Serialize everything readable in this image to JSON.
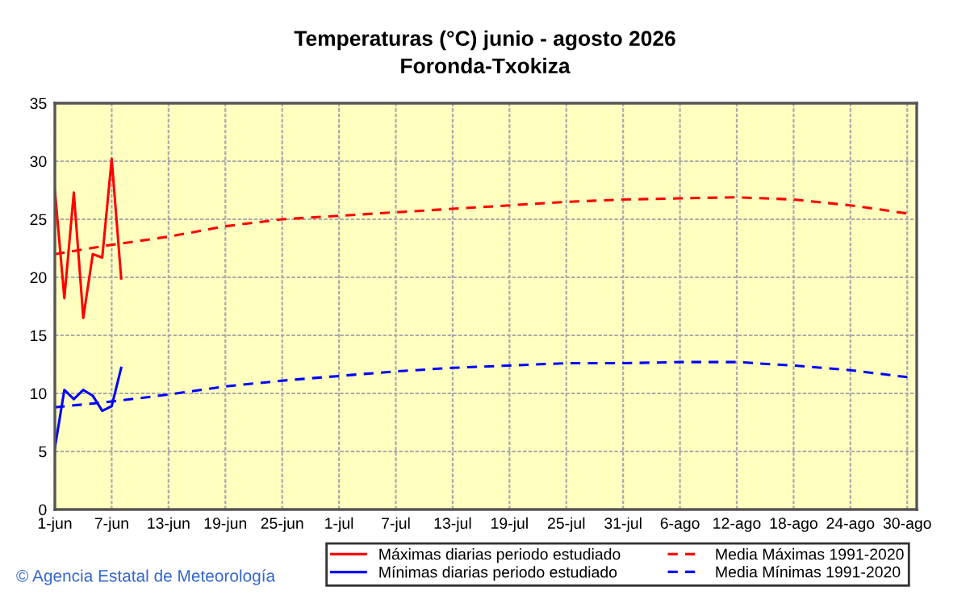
{
  "chart_data": {
    "type": "line",
    "title": "Temperaturas (°C) junio - agosto 2026",
    "subtitle": "Foronda-Txokiza",
    "annotations": [
      "© Agencia Estatal de Meteorología"
    ],
    "xlim": [
      "2026-06-01",
      "2026-08-31"
    ],
    "xticks": [
      {
        "value": "2026-06-01",
        "label": "1-jun"
      },
      {
        "value": "2026-06-07",
        "label": "7-jun"
      },
      {
        "value": "2026-06-13",
        "label": "13-jun"
      },
      {
        "value": "2026-06-19",
        "label": "19-jun"
      },
      {
        "value": "2026-06-25",
        "label": "25-jun"
      },
      {
        "value": "2026-07-01",
        "label": "1-jul"
      },
      {
        "value": "2026-07-07",
        "label": "7-jul"
      },
      {
        "value": "2026-07-13",
        "label": "13-jul"
      },
      {
        "value": "2026-07-19",
        "label": "19-jul"
      },
      {
        "value": "2026-07-25",
        "label": "25-jul"
      },
      {
        "value": "2026-07-31",
        "label": "31-jul"
      },
      {
        "value": "2026-08-06",
        "label": "6-ago"
      },
      {
        "value": "2026-08-12",
        "label": "12-ago"
      },
      {
        "value": "2026-08-18",
        "label": "18-ago"
      },
      {
        "value": "2026-08-24",
        "label": "24-ago"
      },
      {
        "value": "2026-08-30",
        "label": "30-ago"
      }
    ],
    "ylim": [
      0,
      35
    ],
    "yticks": [
      0,
      5,
      10,
      15,
      20,
      25,
      30,
      35
    ],
    "grid": true,
    "legend": "bottom right",
    "marker": "none",
    "series": [
      {
        "name": "Máximas diarias periodo estudiado",
        "color": "#ff0000",
        "line_style": "solid",
        "x": [
          "2026-06-01",
          "2026-06-02",
          "2026-06-03",
          "2026-06-04",
          "2026-06-05",
          "2026-06-06",
          "2026-06-07",
          "2026-06-08"
        ],
        "values": [
          27.5,
          18.2,
          27.3,
          16.5,
          22.0,
          21.7,
          30.2,
          19.9
        ]
      },
      {
        "name": "Mínimas diarias periodo estudiado",
        "color": "#0000ff",
        "line_style": "solid",
        "x": [
          "2026-06-01",
          "2026-06-02",
          "2026-06-03",
          "2026-06-04",
          "2026-06-05",
          "2026-06-06",
          "2026-06-07",
          "2026-06-08"
        ],
        "values": [
          5.3,
          10.3,
          9.5,
          10.3,
          9.8,
          8.5,
          8.9,
          12.2
        ]
      },
      {
        "name": "Media Máximas 1991-2020",
        "color": "#ff0000",
        "line_style": "dashed",
        "x": [
          "2026-06-01",
          "2026-06-07",
          "2026-06-13",
          "2026-06-19",
          "2026-06-25",
          "2026-07-01",
          "2026-07-07",
          "2026-07-13",
          "2026-07-19",
          "2026-07-25",
          "2026-07-31",
          "2026-08-06",
          "2026-08-12",
          "2026-08-18",
          "2026-08-24",
          "2026-08-30"
        ],
        "values": [
          22.0,
          22.8,
          23.5,
          24.4,
          25.0,
          25.3,
          25.6,
          25.9,
          26.2,
          26.5,
          26.7,
          26.8,
          26.9,
          26.7,
          26.2,
          25.5
        ]
      },
      {
        "name": "Media Mínimas 1991-2020",
        "color": "#0000ff",
        "line_style": "dashed",
        "x": [
          "2026-06-01",
          "2026-06-07",
          "2026-06-13",
          "2026-06-19",
          "2026-06-25",
          "2026-07-01",
          "2026-07-07",
          "2026-07-13",
          "2026-07-19",
          "2026-07-25",
          "2026-07-31",
          "2026-08-06",
          "2026-08-12",
          "2026-08-18",
          "2026-08-24",
          "2026-08-30"
        ],
        "values": [
          8.8,
          9.3,
          9.9,
          10.6,
          11.1,
          11.5,
          11.9,
          12.2,
          12.4,
          12.6,
          12.6,
          12.7,
          12.7,
          12.4,
          12.0,
          11.4
        ]
      }
    ]
  }
}
